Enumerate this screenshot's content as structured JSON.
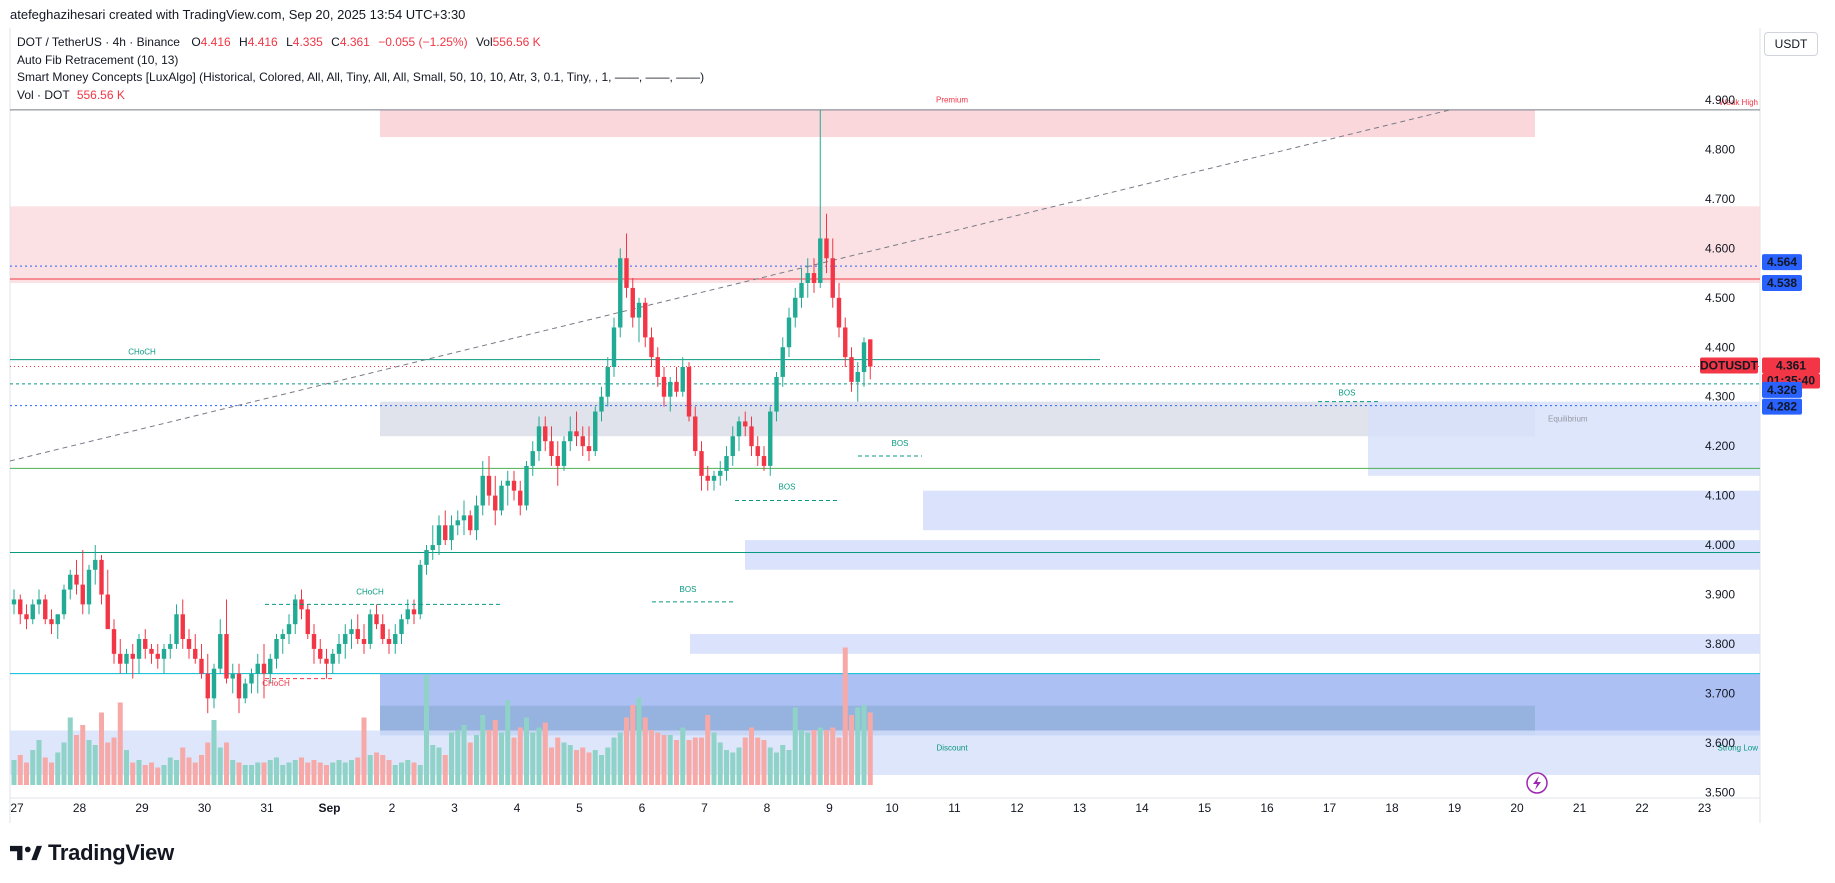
{
  "header": {
    "author_line": "atefeghazihesari created with TradingView.com, Sep 20, 2025 13:54 UTC+3:30"
  },
  "legend": {
    "symbol": "DOT / TetherUS · 4h · Binance",
    "o_label": "O",
    "o_value": "4.416",
    "h_label": "H",
    "h_value": "4.416",
    "l_label": "L",
    "l_value": "4.335",
    "c_label": "C",
    "c_value": "4.361",
    "change": "−0.055 (−1.25%)",
    "vol_label": "Vol",
    "vol_value": "556.56 K",
    "indicator1": "Auto Fib Retracement (10, 13)",
    "indicator2": "Smart Money Concepts [LuxAlgo] (Historical, Colored, All, All, Tiny, All, All, Small, 50, 10, 10, Atr, 3, 0.1, Tiny, , 1, ——, ——, ——)",
    "vol_indicator_label": "Vol · DOT",
    "vol_indicator_value": "556.56 K"
  },
  "currency": "USDT",
  "brand": "TradingView",
  "colors": {
    "up": "#22ab94",
    "down": "#f23645",
    "vol_up": "#8fd3c8",
    "vol_down": "#f7a9a7",
    "premium_zone": "#f9d7db",
    "discount_zone": "#d6e0fb",
    "equilibrium_zone": "#e0e3eb",
    "order_block": "#9fb5f2"
  },
  "chart_data": {
    "type": "candlestick",
    "timeframe": "4h",
    "y_ticks": [
      "4.900",
      "4.800",
      "4.700",
      "4.600",
      "4.500",
      "4.400",
      "4.300",
      "4.200",
      "4.100",
      "4.000",
      "3.900",
      "3.800",
      "3.700",
      "3.600",
      "3.500"
    ],
    "y_tick_values": [
      4.9,
      4.8,
      4.7,
      4.6,
      4.5,
      4.4,
      4.3,
      4.2,
      4.1,
      4.0,
      3.9,
      3.8,
      3.7,
      3.6,
      3.5
    ],
    "ylim": [
      3.475,
      5.03
    ],
    "x_ticks": [
      "27",
      "28",
      "29",
      "30",
      "31",
      "Sep",
      "2",
      "3",
      "4",
      "5",
      "6",
      "7",
      "8",
      "9",
      "10",
      "11",
      "12",
      "13",
      "14",
      "15",
      "16",
      "17",
      "18",
      "19",
      "20",
      "21",
      "22",
      "23"
    ],
    "price_labels": [
      {
        "text": "4.564",
        "value": 4.564,
        "color": "#2962ff"
      },
      {
        "text": "4.538",
        "value": 4.538,
        "color": "#2962ff"
      },
      {
        "text": "DOTUSDT",
        "value": 4.361,
        "color": "#f23645"
      },
      {
        "text": "4.361",
        "value": 4.361,
        "color": "#f23645"
      },
      {
        "text": "01:35:40",
        "value": 4.361,
        "color": "#f23645"
      },
      {
        "text": "4.326",
        "value": 4.326,
        "color": "#2962ff"
      },
      {
        "text": "4.282",
        "value": 4.282,
        "color": "#2962ff"
      }
    ],
    "zone_labels": {
      "premium": "Premium",
      "equilibrium": "Equilibrium",
      "discount": "Discount",
      "weak_high": "Weak High",
      "strong_low": "Strong Low"
    },
    "structure_labels": [
      {
        "text": "CHoCH",
        "color": "#089981"
      },
      {
        "text": "CHoCH",
        "color": "#089981"
      },
      {
        "text": "CHoCH",
        "color": "#f23645"
      },
      {
        "text": "BOS",
        "color": "#089981"
      },
      {
        "text": "BOS",
        "color": "#089981"
      },
      {
        "text": "BOS",
        "color": "#089981"
      },
      {
        "text": "BOS",
        "color": "#089981"
      }
    ],
    "candles": [
      [
        3.88,
        3.91,
        3.86,
        3.89
      ],
      [
        3.89,
        3.9,
        3.84,
        3.86
      ],
      [
        3.86,
        3.88,
        3.83,
        3.85
      ],
      [
        3.85,
        3.89,
        3.84,
        3.88
      ],
      [
        3.88,
        3.91,
        3.86,
        3.89
      ],
      [
        3.89,
        3.9,
        3.84,
        3.85
      ],
      [
        3.85,
        3.87,
        3.82,
        3.84
      ],
      [
        3.84,
        3.86,
        3.81,
        3.86
      ],
      [
        3.86,
        3.92,
        3.85,
        3.91
      ],
      [
        3.91,
        3.95,
        3.89,
        3.94
      ],
      [
        3.94,
        3.97,
        3.9,
        3.92
      ],
      [
        3.92,
        3.99,
        3.86,
        3.88
      ],
      [
        3.88,
        3.96,
        3.86,
        3.95
      ],
      [
        3.95,
        4.0,
        3.92,
        3.97
      ],
      [
        3.97,
        3.98,
        3.88,
        3.9
      ],
      [
        3.9,
        3.95,
        3.84,
        3.83
      ],
      [
        3.83,
        3.85,
        3.76,
        3.78
      ],
      [
        3.78,
        3.81,
        3.74,
        3.76
      ],
      [
        3.76,
        3.79,
        3.74,
        3.78
      ],
      [
        3.78,
        3.8,
        3.73,
        3.77
      ],
      [
        3.77,
        3.82,
        3.74,
        3.81
      ],
      [
        3.81,
        3.83,
        3.77,
        3.79
      ],
      [
        3.79,
        3.8,
        3.76,
        3.78
      ],
      [
        3.78,
        3.8,
        3.75,
        3.77
      ],
      [
        3.77,
        3.8,
        3.74,
        3.79
      ],
      [
        3.79,
        3.82,
        3.77,
        3.8
      ],
      [
        3.8,
        3.88,
        3.79,
        3.86
      ],
      [
        3.86,
        3.89,
        3.79,
        3.81
      ],
      [
        3.81,
        3.83,
        3.77,
        3.79
      ],
      [
        3.79,
        3.82,
        3.76,
        3.77
      ],
      [
        3.77,
        3.8,
        3.73,
        3.74
      ],
      [
        3.74,
        3.78,
        3.66,
        3.69
      ],
      [
        3.69,
        3.76,
        3.67,
        3.75
      ],
      [
        3.75,
        3.85,
        3.74,
        3.82
      ],
      [
        3.82,
        3.89,
        3.72,
        3.73
      ],
      [
        3.73,
        3.76,
        3.7,
        3.74
      ],
      [
        3.74,
        3.76,
        3.66,
        3.69
      ],
      [
        3.69,
        3.73,
        3.68,
        3.72
      ],
      [
        3.72,
        3.75,
        3.7,
        3.74
      ],
      [
        3.74,
        3.78,
        3.7,
        3.76
      ],
      [
        3.76,
        3.8,
        3.69,
        3.74
      ],
      [
        3.74,
        3.78,
        3.72,
        3.77
      ],
      [
        3.77,
        3.82,
        3.75,
        3.81
      ],
      [
        3.81,
        3.83,
        3.78,
        3.82
      ],
      [
        3.82,
        3.86,
        3.8,
        3.84
      ],
      [
        3.84,
        3.9,
        3.82,
        3.89
      ],
      [
        3.89,
        3.91,
        3.85,
        3.87
      ],
      [
        3.87,
        3.88,
        3.81,
        3.82
      ],
      [
        3.82,
        3.84,
        3.76,
        3.79
      ],
      [
        3.79,
        3.81,
        3.76,
        3.77
      ],
      [
        3.77,
        3.79,
        3.73,
        3.76
      ],
      [
        3.76,
        3.79,
        3.74,
        3.78
      ],
      [
        3.78,
        3.82,
        3.76,
        3.8
      ],
      [
        3.8,
        3.84,
        3.77,
        3.82
      ],
      [
        3.82,
        3.85,
        3.79,
        3.83
      ],
      [
        3.83,
        3.86,
        3.8,
        3.81
      ],
      [
        3.81,
        3.84,
        3.78,
        3.8
      ],
      [
        3.8,
        3.87,
        3.79,
        3.86
      ],
      [
        3.86,
        3.88,
        3.83,
        3.84
      ],
      [
        3.84,
        3.86,
        3.8,
        3.81
      ],
      [
        3.81,
        3.83,
        3.78,
        3.8
      ],
      [
        3.8,
        3.84,
        3.78,
        3.82
      ],
      [
        3.82,
        3.86,
        3.8,
        3.85
      ],
      [
        3.85,
        3.89,
        3.84,
        3.87
      ],
      [
        3.87,
        3.89,
        3.84,
        3.86
      ],
      [
        3.86,
        3.97,
        3.85,
        3.96
      ],
      [
        3.96,
        4.0,
        3.94,
        3.99
      ],
      [
        3.99,
        4.04,
        3.97,
        4.0
      ],
      [
        4.0,
        4.06,
        3.98,
        4.04
      ],
      [
        4.04,
        4.07,
        4.0,
        4.01
      ],
      [
        4.01,
        4.06,
        3.99,
        4.04
      ],
      [
        4.04,
        4.07,
        4.02,
        4.05
      ],
      [
        4.05,
        4.09,
        4.02,
        4.06
      ],
      [
        4.06,
        4.07,
        4.02,
        4.03
      ],
      [
        4.03,
        4.1,
        4.01,
        4.08
      ],
      [
        4.08,
        4.17,
        4.06,
        4.14
      ],
      [
        4.14,
        4.18,
        4.08,
        4.1
      ],
      [
        4.1,
        4.14,
        4.04,
        4.07
      ],
      [
        4.07,
        4.13,
        4.06,
        4.12
      ],
      [
        4.12,
        4.15,
        4.08,
        4.13
      ],
      [
        4.13,
        4.15,
        4.09,
        4.11
      ],
      [
        4.11,
        4.13,
        4.06,
        4.08
      ],
      [
        4.08,
        4.17,
        4.07,
        4.16
      ],
      [
        4.16,
        4.21,
        4.14,
        4.19
      ],
      [
        4.19,
        4.26,
        4.17,
        4.24
      ],
      [
        4.24,
        4.26,
        4.19,
        4.21
      ],
      [
        4.21,
        4.24,
        4.16,
        4.18
      ],
      [
        4.18,
        4.21,
        4.12,
        4.16
      ],
      [
        4.16,
        4.22,
        4.15,
        4.21
      ],
      [
        4.21,
        4.26,
        4.19,
        4.23
      ],
      [
        4.23,
        4.27,
        4.2,
        4.22
      ],
      [
        4.22,
        4.24,
        4.18,
        4.2
      ],
      [
        4.2,
        4.24,
        4.17,
        4.19
      ],
      [
        4.19,
        4.28,
        4.18,
        4.27
      ],
      [
        4.27,
        4.32,
        4.25,
        4.3
      ],
      [
        4.3,
        4.38,
        4.28,
        4.36
      ],
      [
        4.36,
        4.46,
        4.34,
        4.44
      ],
      [
        4.44,
        4.6,
        4.42,
        4.58
      ],
      [
        4.58,
        4.63,
        4.5,
        4.52
      ],
      [
        4.52,
        4.54,
        4.44,
        4.46
      ],
      [
        4.46,
        4.5,
        4.41,
        4.49
      ],
      [
        4.49,
        4.5,
        4.4,
        4.42
      ],
      [
        4.42,
        4.44,
        4.36,
        4.38
      ],
      [
        4.38,
        4.4,
        4.32,
        4.34
      ],
      [
        4.34,
        4.36,
        4.28,
        4.3
      ],
      [
        4.3,
        4.34,
        4.27,
        4.33
      ],
      [
        4.33,
        4.36,
        4.3,
        4.31
      ],
      [
        4.31,
        4.38,
        4.3,
        4.36
      ],
      [
        4.36,
        4.37,
        4.25,
        4.26
      ],
      [
        4.26,
        4.28,
        4.18,
        4.19
      ],
      [
        4.19,
        4.21,
        4.11,
        4.14
      ],
      [
        4.14,
        4.16,
        4.11,
        4.13
      ],
      [
        4.13,
        4.15,
        4.11,
        4.14
      ],
      [
        4.14,
        4.17,
        4.12,
        4.15
      ],
      [
        4.15,
        4.2,
        4.13,
        4.18
      ],
      [
        4.18,
        4.24,
        4.16,
        4.22
      ],
      [
        4.22,
        4.26,
        4.19,
        4.25
      ],
      [
        4.25,
        4.27,
        4.22,
        4.24
      ],
      [
        4.24,
        4.26,
        4.18,
        4.2
      ],
      [
        4.2,
        4.22,
        4.16,
        4.18
      ],
      [
        4.18,
        4.2,
        4.15,
        4.16
      ],
      [
        4.16,
        4.28,
        4.14,
        4.27
      ],
      [
        4.27,
        4.35,
        4.25,
        4.34
      ],
      [
        4.34,
        4.42,
        4.32,
        4.4
      ],
      [
        4.4,
        4.48,
        4.38,
        4.46
      ],
      [
        4.46,
        4.52,
        4.44,
        4.5
      ],
      [
        4.5,
        4.56,
        4.48,
        4.53
      ],
      [
        4.53,
        4.58,
        4.5,
        4.55
      ],
      [
        4.55,
        4.58,
        4.51,
        4.53
      ],
      [
        4.53,
        4.88,
        4.52,
        4.62
      ],
      [
        4.62,
        4.67,
        4.55,
        4.58
      ],
      [
        4.58,
        4.62,
        4.48,
        4.5
      ],
      [
        4.5,
        4.53,
        4.42,
        4.44
      ],
      [
        4.44,
        4.46,
        4.36,
        4.38
      ],
      [
        4.38,
        4.4,
        4.31,
        4.33
      ],
      [
        4.33,
        4.37,
        4.29,
        4.35
      ],
      [
        4.35,
        4.42,
        4.32,
        4.41
      ],
      [
        4.416,
        4.416,
        4.335,
        4.361
      ]
    ],
    "volume": [
      0.1,
      0.12,
      0.09,
      0.14,
      0.18,
      0.11,
      0.09,
      0.13,
      0.17,
      0.27,
      0.2,
      0.24,
      0.18,
      0.16,
      0.29,
      0.17,
      0.19,
      0.33,
      0.14,
      0.09,
      0.1,
      0.08,
      0.09,
      0.07,
      0.08,
      0.11,
      0.1,
      0.15,
      0.11,
      0.09,
      0.12,
      0.17,
      0.26,
      0.15,
      0.17,
      0.1,
      0.09,
      0.08,
      0.08,
      0.09,
      0.09,
      0.1,
      0.11,
      0.08,
      0.09,
      0.1,
      0.11,
      0.09,
      0.1,
      0.09,
      0.08,
      0.09,
      0.1,
      0.09,
      0.1,
      0.11,
      0.27,
      0.12,
      0.13,
      0.12,
      0.1,
      0.08,
      0.09,
      0.1,
      0.09,
      0.08,
      0.44,
      0.16,
      0.15,
      0.12,
      0.21,
      0.22,
      0.24,
      0.17,
      0.2,
      0.28,
      0.22,
      0.26,
      0.21,
      0.34,
      0.19,
      0.23,
      0.27,
      0.21,
      0.23,
      0.25,
      0.15,
      0.19,
      0.17,
      0.16,
      0.14,
      0.15,
      0.13,
      0.14,
      0.12,
      0.15,
      0.19,
      0.21,
      0.27,
      0.32,
      0.35,
      0.27,
      0.22,
      0.21,
      0.2,
      0.2,
      0.18,
      0.23,
      0.18,
      0.19,
      0.19,
      0.28,
      0.21,
      0.17,
      0.14,
      0.13,
      0.15,
      0.19,
      0.23,
      0.19,
      0.18,
      0.15,
      0.13,
      0.16,
      0.14,
      0.31,
      0.22,
      0.21,
      0.22,
      0.23,
      0.22,
      0.23,
      0.19,
      0.55,
      0.28,
      0.31,
      0.32,
      0.29,
      0.24,
      0.21,
      0.24,
      0.1
    ]
  }
}
